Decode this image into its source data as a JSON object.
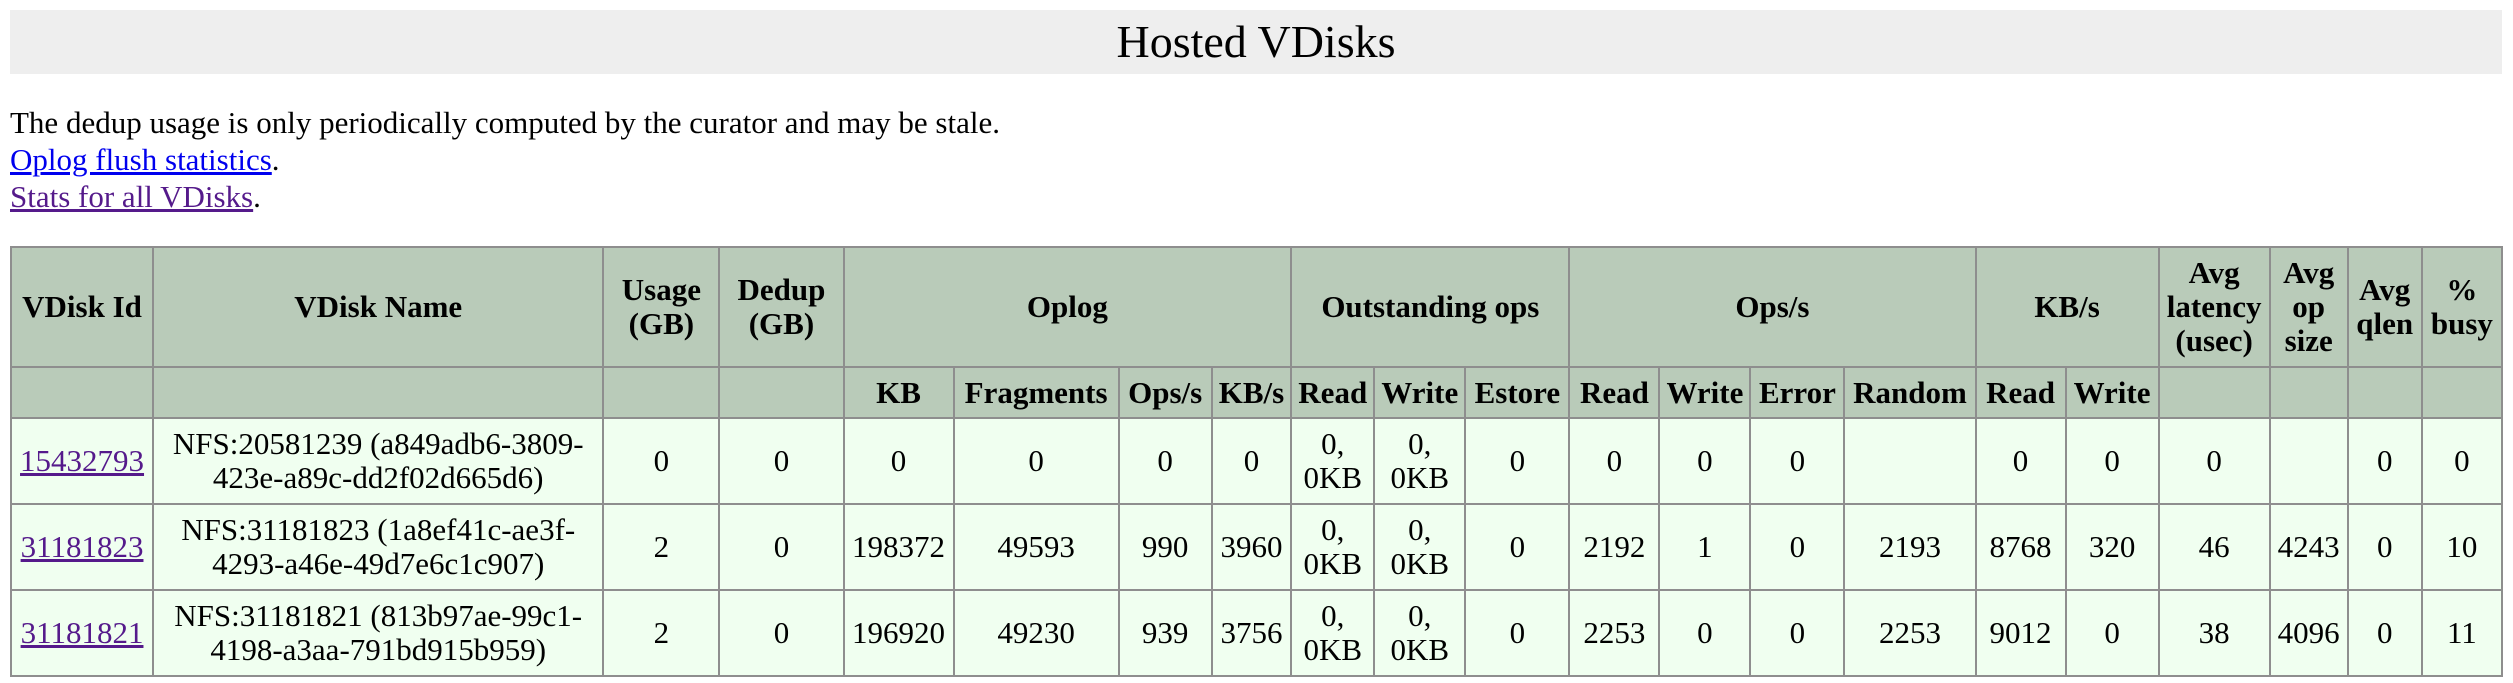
{
  "page": {
    "title": "Hosted VDisks",
    "note": "The dedup usage is only periodically computed by the curator and may be stale.",
    "links": [
      {
        "text": "Oplog flush statistics",
        "visited": false
      },
      {
        "text": "Stats for all VDisks",
        "visited": true
      }
    ]
  },
  "table": {
    "group_headers": {
      "vdisk_id": "VDisk Id",
      "vdisk_name": "VDisk Name",
      "usage": "Usage (GB)",
      "dedup": "Dedup (GB)",
      "oplog": "Oplog",
      "outstanding_ops": "Outstanding ops",
      "ops_s": "Ops/s",
      "kb_s": "KB/s",
      "avg_latency": "Avg latency (usec)",
      "avg_op_size": "Avg op size",
      "avg_qlen": "Avg qlen",
      "pct_busy": "% busy"
    },
    "sub_headers": {
      "oplog_kb": "KB",
      "oplog_fragments": "Fragments",
      "oplog_ops": "Ops/s",
      "oplog_kbs": "KB/s",
      "out_read": "Read",
      "out_write": "Write",
      "out_estore": "Estore",
      "ops_read": "Read",
      "ops_write": "Write",
      "ops_error": "Error",
      "ops_random": "Random",
      "kbs_read": "Read",
      "kbs_write": "Write"
    },
    "rows": [
      {
        "id": "15432793",
        "name": "NFS:20581239 (a849adb6-3809-423e-a89c-dd2f02d665d6)",
        "usage": "0",
        "dedup": "0",
        "oplog_kb": "0",
        "oplog_fragments": "0",
        "oplog_ops": "0",
        "oplog_kbs": "0",
        "out_read": "0, 0KB",
        "out_write": "0, 0KB",
        "out_estore": "0",
        "ops_read": "0",
        "ops_write": "0",
        "ops_error": "0",
        "ops_random": "",
        "kbs_read": "0",
        "kbs_write": "0",
        "avg_latency": "0",
        "avg_op_size": "",
        "avg_qlen": "0",
        "pct_busy": "0"
      },
      {
        "id": "31181823",
        "name": "NFS:31181823 (1a8ef41c-ae3f-4293-a46e-49d7e6c1c907)",
        "usage": "2",
        "dedup": "0",
        "oplog_kb": "198372",
        "oplog_fragments": "49593",
        "oplog_ops": "990",
        "oplog_kbs": "3960",
        "out_read": "0, 0KB",
        "out_write": "0, 0KB",
        "out_estore": "0",
        "ops_read": "2192",
        "ops_write": "1",
        "ops_error": "0",
        "ops_random": "2193",
        "kbs_read": "8768",
        "kbs_write": "320",
        "avg_latency": "46",
        "avg_op_size": "4243",
        "avg_qlen": "0",
        "pct_busy": "10"
      },
      {
        "id": "31181821",
        "name": "NFS:31181821 (813b97ae-99c1-4198-a3aa-791bd915b959)",
        "usage": "2",
        "dedup": "0",
        "oplog_kb": "196920",
        "oplog_fragments": "49230",
        "oplog_ops": "939",
        "oplog_kbs": "3756",
        "out_read": "0, 0KB",
        "out_write": "0, 0KB",
        "out_estore": "0",
        "ops_read": "2253",
        "ops_write": "0",
        "ops_error": "0",
        "ops_random": "2253",
        "kbs_read": "9012",
        "kbs_write": "0",
        "avg_latency": "38",
        "avg_op_size": "4096",
        "avg_qlen": "0",
        "pct_busy": "11"
      }
    ]
  }
}
